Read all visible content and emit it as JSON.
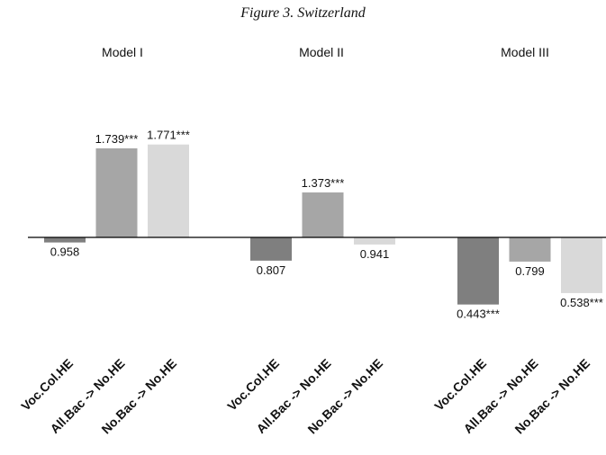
{
  "title": "Figure 3. Switzerland",
  "chart_data": {
    "type": "bar",
    "title": "Figure 3. Switzerland",
    "baseline": 1,
    "ylim": [
      0.35,
      2.0
    ],
    "groups": [
      {
        "name": "Model I",
        "categories": [
          "Voc.Col.HE",
          "All.Bac -> No.HE",
          "No.Bac -> No.HE"
        ],
        "values": [
          0.958,
          1.739,
          1.771
        ],
        "labels": [
          "0.958",
          "1.739***",
          "1.771***"
        ]
      },
      {
        "name": "Model II",
        "categories": [
          "Voc.Col.HE",
          "All.Bac -> No.HE",
          "No.Bac -> No.HE"
        ],
        "values": [
          0.807,
          1.373,
          0.941
        ],
        "labels": [
          "0.807",
          "1.373***",
          "0.941"
        ]
      },
      {
        "name": "Model III",
        "categories": [
          "Voc.Col.HE",
          "All.Bac -> No.HE",
          "No.Bac -> No.HE"
        ],
        "values": [
          0.443,
          0.799,
          0.538
        ],
        "labels": [
          "0.443***",
          "0.799",
          "0.538***"
        ]
      }
    ],
    "series_colors": [
      "#7f7f7f",
      "#a6a6a6",
      "#d9d9d9"
    ],
    "grid": false,
    "legend": "none"
  }
}
